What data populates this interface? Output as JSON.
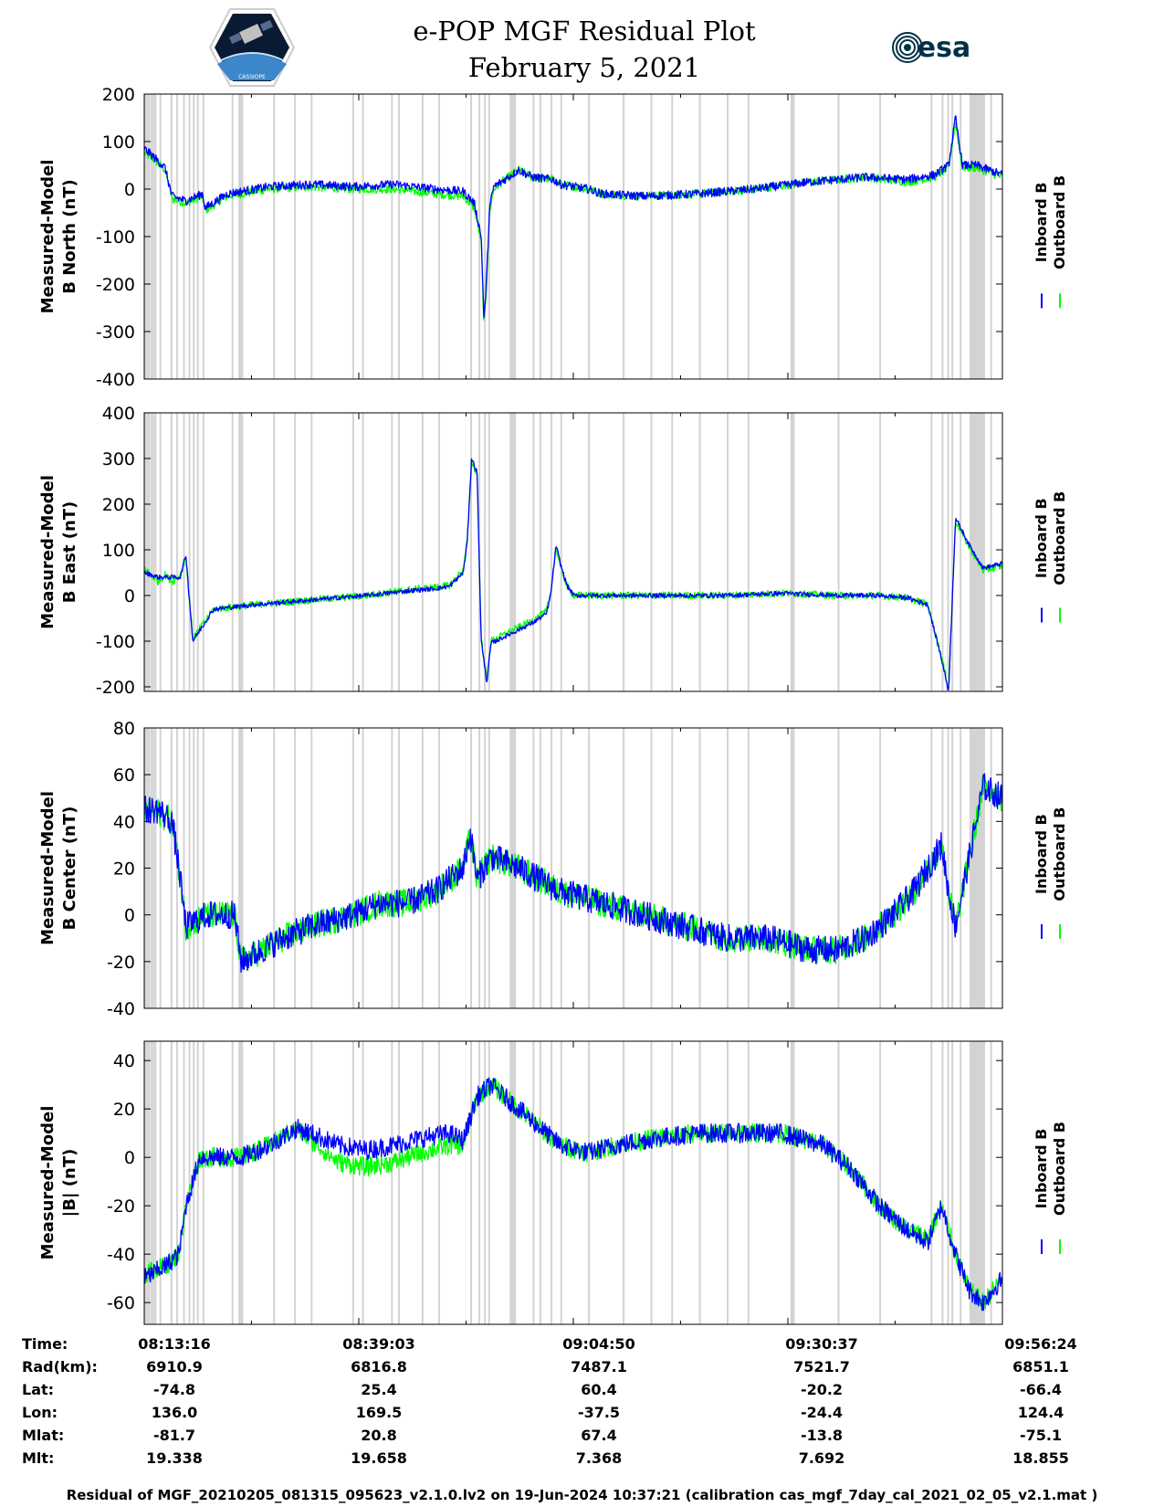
{
  "title": {
    "line1": "e-POP MGF Residual Plot",
    "line2": "February 5, 2021"
  },
  "logos": {
    "left": "cassiope-mission-logo",
    "left_caption": "CASSIOPE",
    "right": "esa-logo",
    "right_text": "esa"
  },
  "colors": {
    "inboard": "#0000ff",
    "outboard": "#00ff00",
    "gaps": "#d3d3d3"
  },
  "legend": {
    "inboard": "Inboard B",
    "outboard": "Outboard B"
  },
  "chart_data": [
    {
      "type": "line",
      "ylabel": [
        "Measured-Model",
        "B North (nT)"
      ],
      "ylim": [
        -400,
        200
      ],
      "yticks": [
        200,
        100,
        0,
        -100,
        -200,
        -300,
        -400
      ],
      "xlim": [
        0,
        6188
      ],
      "series": [
        {
          "name": "Inboard B",
          "x": [
            0,
            60,
            150,
            200,
            300,
            420,
            440,
            600,
            900,
            1200,
            1500,
            1800,
            2100,
            2300,
            2380,
            2430,
            2450,
            2470,
            2490,
            2520,
            2600,
            2700,
            2800,
            2950,
            3000,
            3200,
            3300,
            3600,
            4000,
            4400,
            4800,
            5200,
            5500,
            5700,
            5800,
            5850,
            5900,
            6000,
            6188
          ],
          "values": [
            85,
            70,
            45,
            -15,
            -25,
            -10,
            -40,
            -10,
            5,
            10,
            5,
            10,
            0,
            -5,
            -30,
            -100,
            -280,
            -180,
            -40,
            5,
            20,
            40,
            25,
            20,
            10,
            0,
            -10,
            -15,
            -10,
            0,
            15,
            25,
            20,
            30,
            50,
            150,
            50,
            50,
            30
          ],
          "noise": 9
        },
        {
          "name": "Outboard B",
          "x": [
            0,
            60,
            150,
            200,
            300,
            420,
            440,
            600,
            900,
            1200,
            1500,
            1800,
            2100,
            2300,
            2380,
            2430,
            2450,
            2470,
            2490,
            2520,
            2600,
            2700,
            2800,
            2950,
            3000,
            3200,
            3300,
            3600,
            4000,
            4400,
            4800,
            5200,
            5500,
            5700,
            5800,
            5850,
            5900,
            6000,
            6188
          ],
          "values": [
            75,
            65,
            40,
            -20,
            -30,
            -15,
            -45,
            -15,
            0,
            5,
            0,
            0,
            -10,
            -15,
            -40,
            -110,
            -295,
            -190,
            -50,
            0,
            20,
            40,
            25,
            20,
            10,
            0,
            -10,
            -15,
            -10,
            0,
            15,
            25,
            15,
            25,
            45,
            140,
            45,
            45,
            25
          ],
          "noise": 9
        }
      ]
    },
    {
      "type": "line",
      "ylabel": [
        "Measured-Model",
        "B East (nT)"
      ],
      "ylim": [
        -210,
        400
      ],
      "yticks": [
        400,
        300,
        200,
        100,
        0,
        -100,
        -200
      ],
      "xlim": [
        0,
        6188
      ],
      "series": [
        {
          "name": "Inboard B",
          "x": [
            0,
            100,
            150,
            200,
            260,
            300,
            350,
            500,
            800,
            1200,
            1600,
            1900,
            2100,
            2200,
            2300,
            2330,
            2360,
            2400,
            2430,
            2470,
            2500,
            2600,
            2800,
            2900,
            2930,
            2970,
            3000,
            3050,
            3100,
            3400,
            3800,
            4200,
            4600,
            5000,
            5300,
            5500,
            5650,
            5750,
            5800,
            5850,
            5950,
            6050,
            6188
          ],
          "values": [
            50,
            40,
            40,
            40,
            40,
            90,
            -100,
            -30,
            -20,
            -10,
            0,
            10,
            15,
            20,
            50,
            120,
            300,
            270,
            -100,
            -190,
            -105,
            -90,
            -60,
            -40,
            0,
            110,
            70,
            20,
            0,
            0,
            0,
            0,
            5,
            0,
            0,
            -5,
            -20,
            -140,
            -210,
            170,
            110,
            60,
            70
          ],
          "noise": 5
        },
        {
          "name": "Outboard B",
          "x": [
            0,
            100,
            150,
            200,
            260,
            300,
            350,
            500,
            800,
            1200,
            1600,
            1900,
            2100,
            2200,
            2300,
            2330,
            2360,
            2400,
            2430,
            2470,
            2500,
            2600,
            2800,
            2900,
            2930,
            2970,
            3000,
            3050,
            3100,
            3400,
            3800,
            4200,
            4600,
            5000,
            5300,
            5500,
            5650,
            5750,
            5800,
            5850,
            5950,
            6050,
            6188
          ],
          "values": [
            60,
            30,
            45,
            30,
            45,
            85,
            -95,
            -30,
            -20,
            -10,
            0,
            12,
            18,
            22,
            55,
            125,
            295,
            265,
            -95,
            -185,
            -100,
            -85,
            -55,
            -35,
            5,
            105,
            65,
            20,
            0,
            0,
            0,
            0,
            5,
            0,
            0,
            -5,
            -20,
            -135,
            -205,
            165,
            105,
            55,
            65
          ],
          "noise": 8
        }
      ]
    },
    {
      "type": "line",
      "ylabel": [
        "Measured-Model",
        "B Center (nT)"
      ],
      "ylim": [
        -40,
        80
      ],
      "yticks": [
        80,
        60,
        40,
        20,
        0,
        -20,
        -40
      ],
      "xlim": [
        0,
        6188
      ],
      "series": [
        {
          "name": "Inboard B",
          "x": [
            0,
            100,
            200,
            250,
            300,
            450,
            650,
            700,
            850,
            1000,
            1200,
            1500,
            1700,
            1900,
            2100,
            2300,
            2350,
            2400,
            2500,
            2700,
            3000,
            3300,
            3600,
            3900,
            4200,
            4500,
            4800,
            5000,
            5200,
            5400,
            5550,
            5650,
            5750,
            5800,
            5850,
            5950,
            6050,
            6188
          ],
          "values": [
            45,
            45,
            40,
            20,
            -5,
            0,
            0,
            -20,
            -15,
            -10,
            -5,
            0,
            5,
            5,
            10,
            20,
            35,
            15,
            25,
            20,
            10,
            5,
            0,
            -5,
            -10,
            -10,
            -15,
            -15,
            -10,
            0,
            10,
            20,
            30,
            10,
            -5,
            25,
            55,
            50
          ],
          "noise": 6
        },
        {
          "name": "Outboard B",
          "x": [
            0,
            100,
            200,
            250,
            300,
            450,
            650,
            700,
            850,
            1000,
            1200,
            1500,
            1700,
            1900,
            2100,
            2300,
            2350,
            2400,
            2500,
            2700,
            3000,
            3300,
            3600,
            3900,
            4200,
            4500,
            4800,
            5000,
            5200,
            5400,
            5550,
            5650,
            5750,
            5800,
            5850,
            5950,
            6050,
            6188
          ],
          "values": [
            44,
            44,
            40,
            20,
            -5,
            0,
            0,
            -20,
            -15,
            -10,
            -5,
            0,
            5,
            5,
            10,
            20,
            34,
            15,
            25,
            20,
            10,
            5,
            0,
            -5,
            -10,
            -10,
            -15,
            -15,
            -10,
            0,
            10,
            20,
            30,
            10,
            -5,
            25,
            55,
            50
          ],
          "noise": 6
        }
      ]
    },
    {
      "type": "line",
      "ylabel": [
        "Measured-Model",
        "|B| (nT)"
      ],
      "ylim": [
        -69,
        48
      ],
      "yticks": [
        40,
        20,
        0,
        -20,
        -40,
        -60
      ],
      "xlim": [
        0,
        6188
      ],
      "series": [
        {
          "name": "Inboard B",
          "x": [
            0,
            150,
            250,
            300,
            400,
            700,
            900,
            1100,
            1200,
            1400,
            1600,
            1800,
            2000,
            2200,
            2300,
            2400,
            2500,
            2700,
            2900,
            3000,
            3200,
            3400,
            3700,
            4000,
            4300,
            4600,
            4900,
            5100,
            5300,
            5500,
            5650,
            5750,
            5850,
            5950,
            6050,
            6188
          ],
          "values": [
            -50,
            -45,
            -40,
            -20,
            0,
            0,
            5,
            12,
            10,
            5,
            3,
            5,
            8,
            10,
            7,
            25,
            30,
            20,
            10,
            5,
            2,
            5,
            8,
            10,
            10,
            10,
            5,
            -5,
            -20,
            -30,
            -35,
            -20,
            -40,
            -55,
            -60,
            -50
          ],
          "noise": 4
        },
        {
          "name": "Outboard B",
          "x": [
            0,
            150,
            250,
            300,
            400,
            700,
            900,
            1100,
            1200,
            1400,
            1600,
            1800,
            2000,
            2200,
            2300,
            2400,
            2500,
            2700,
            2900,
            3000,
            3200,
            3400,
            3700,
            4000,
            4300,
            4600,
            4900,
            5100,
            5300,
            5500,
            5650,
            5750,
            5850,
            5950,
            6050,
            6188
          ],
          "values": [
            -48,
            -45,
            -40,
            -20,
            0,
            0,
            5,
            12,
            7,
            -2,
            -4,
            -2,
            2,
            5,
            5,
            25,
            30,
            20,
            10,
            5,
            2,
            5,
            8,
            10,
            10,
            10,
            5,
            -5,
            -20,
            -30,
            -33,
            -20,
            -40,
            -55,
            -60,
            -50
          ],
          "noise": 4
        }
      ]
    }
  ],
  "gap_bands": [
    [
      0,
      8
    ],
    [
      15,
      20
    ],
    [
      28,
      35
    ],
    [
      45,
      55
    ],
    [
      60,
      65
    ],
    [
      75,
      85
    ],
    [
      110,
      115
    ],
    [
      190,
      195
    ],
    [
      230,
      236
    ],
    [
      280,
      290
    ],
    [
      320,
      330
    ],
    [
      350,
      358
    ],
    [
      380,
      388
    ],
    [
      420,
      430
    ],
    [
      630,
      640
    ],
    [
      680,
      690
    ],
    [
      700,
      710
    ],
    [
      930,
      940
    ],
    [
      1080,
      1088
    ],
    [
      1200,
      1208
    ],
    [
      1500,
      1510
    ],
    [
      1570,
      1580
    ],
    [
      1780,
      1790
    ],
    [
      1830,
      1838
    ],
    [
      2000,
      2010
    ],
    [
      2120,
      2130
    ],
    [
      2350,
      2360
    ],
    [
      2410,
      2420
    ],
    [
      2450,
      2460
    ],
    [
      2480,
      2490
    ],
    [
      2650,
      2660
    ],
    [
      2800,
      2810
    ],
    [
      2850,
      2860
    ],
    [
      2930,
      2940
    ],
    [
      3000,
      3010
    ],
    [
      3200,
      3210
    ],
    [
      3450,
      3460
    ],
    [
      3650,
      3660
    ],
    [
      3800,
      3810
    ],
    [
      4000,
      4010
    ],
    [
      4200,
      4210
    ],
    [
      4350,
      4360
    ],
    [
      5000,
      5010
    ],
    [
      5300,
      5310
    ],
    [
      5670,
      5680
    ],
    [
      5750,
      5760
    ],
    [
      5790,
      5800
    ],
    [
      5820,
      5830
    ],
    [
      5880,
      5890
    ],
    [
      5950,
      6010
    ],
    [
      6050,
      6060
    ],
    [
      6100,
      6110
    ]
  ],
  "gap_bands_wide": [
    [
      680,
      705
    ],
    [
      2635,
      2680
    ],
    [
      4660,
      4690
    ],
    [
      5990,
      6050
    ]
  ],
  "xaxis": {
    "tick_x": [
      0,
      1547,
      3094,
      4641,
      6188
    ],
    "minor_x": [
      773,
      2320,
      3867,
      5414
    ]
  },
  "info": {
    "labels": [
      "Time:",
      "Rad(km):",
      "Lat:",
      "Lon:",
      "Mlat:",
      "Mlt:"
    ],
    "columns": [
      {
        "time": "08:13:16",
        "rad": "6910.9",
        "lat": "-74.8",
        "lon": "136.0",
        "mlat": "-81.7",
        "mlt": "19.338"
      },
      {
        "time": "08:39:03",
        "rad": "6816.8",
        "lat": "25.4",
        "lon": "169.5",
        "mlat": "20.8",
        "mlt": "19.658"
      },
      {
        "time": "09:04:50",
        "rad": "7487.1",
        "lat": "60.4",
        "lon": "-37.5",
        "mlat": "67.4",
        "mlt": "7.368"
      },
      {
        "time": "09:30:37",
        "rad": "7521.7",
        "lat": "-20.2",
        "lon": "-24.4",
        "mlat": "-13.8",
        "mlt": "7.692"
      },
      {
        "time": "09:56:24",
        "rad": "6851.1",
        "lat": "-66.4",
        "lon": "124.4",
        "mlat": "-75.1",
        "mlt": "18.855"
      }
    ]
  },
  "footer": "Residual of MGF_20210205_081315_095623_v2.1.0.lv2 on 19-Jun-2024 10:37:21 (calibration cas_mgf_7day_cal_2021_02_05_v2.1.mat )"
}
